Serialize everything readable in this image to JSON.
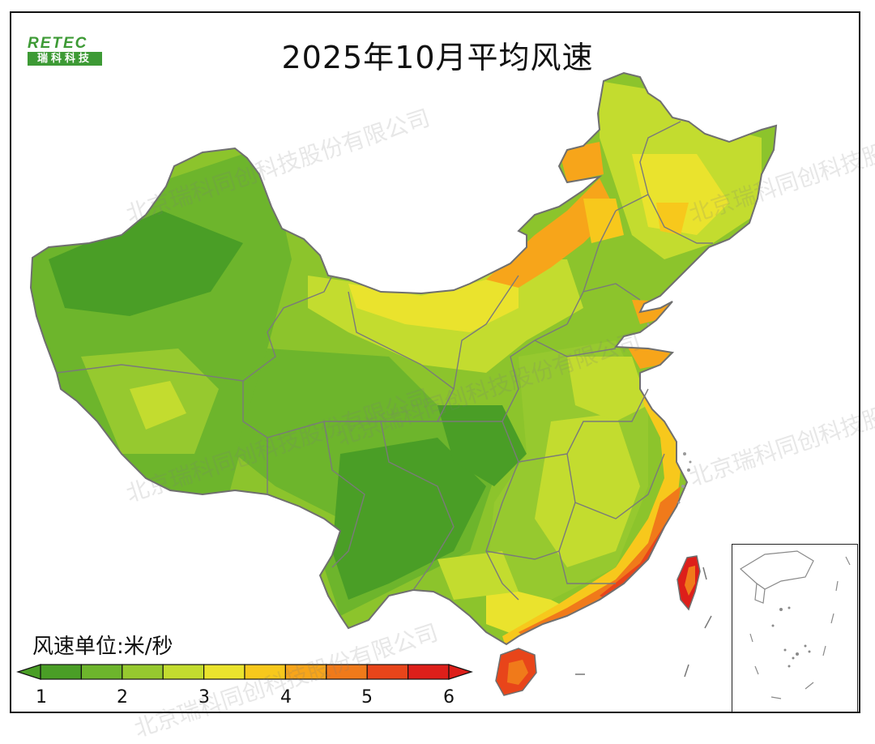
{
  "title": "2025年10月平均风速",
  "logo": {
    "top": "RETEC",
    "bottom": "瑞科科技"
  },
  "legend": {
    "unit_label": "风速单位:米/秒",
    "ticks": [
      "1",
      "2",
      "3",
      "4",
      "5",
      "6"
    ],
    "colors": [
      "#4a9e26",
      "#6db52c",
      "#96c92f",
      "#c3dc2f",
      "#eae32d",
      "#f7c81c",
      "#f7a51a",
      "#f07a1a",
      "#e8451a",
      "#dd1f1a"
    ]
  },
  "watermark": "北京瑞科同创科技股份有限公司",
  "regions": [
    {
      "name": "west",
      "speed": 2.0
    },
    {
      "name": "north-northwest",
      "speed": 3.2
    },
    {
      "name": "southwest-sichuan",
      "speed": 1.6
    },
    {
      "name": "southeast-interior",
      "speed": 2.8
    },
    {
      "name": "inner-mongolia-east",
      "speed": 4.2
    },
    {
      "name": "northeast",
      "speed": 3.3
    },
    {
      "name": "southeast-coast",
      "speed": 5.5
    },
    {
      "name": "taiwan",
      "speed": 5.8
    },
    {
      "name": "hainan",
      "speed": 5.6
    }
  ]
}
